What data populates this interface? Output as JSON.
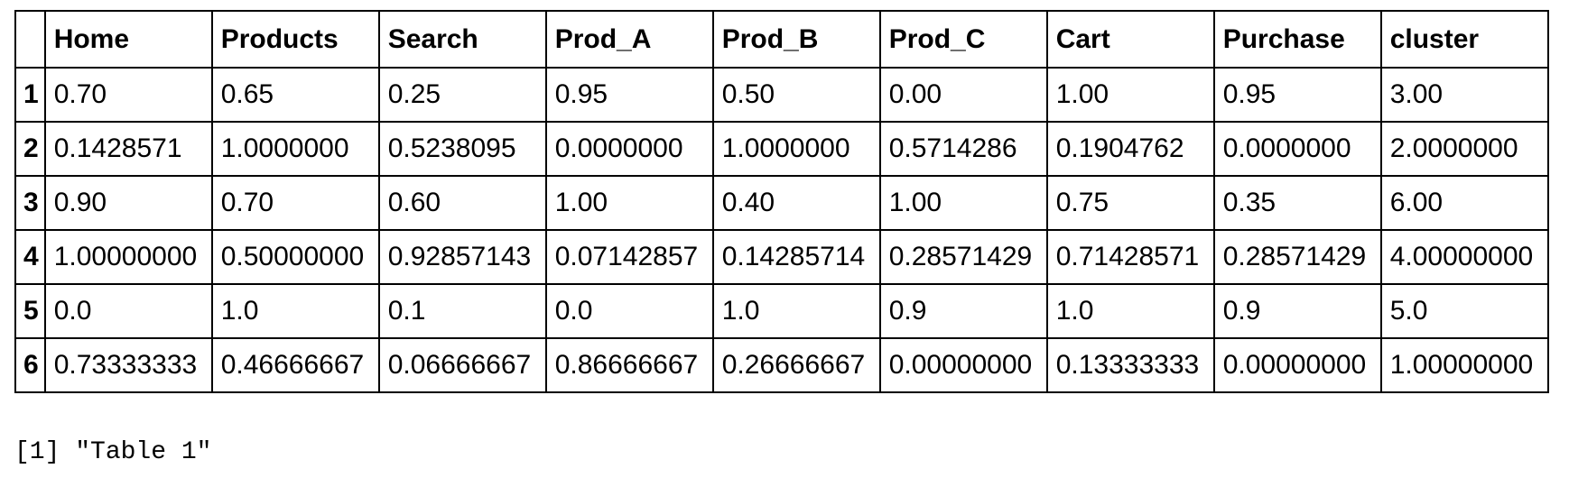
{
  "table": {
    "corner": "",
    "columns": [
      "Home",
      "Products",
      "Search",
      "Prod_A",
      "Prod_B",
      "Prod_C",
      "Cart",
      "Purchase",
      "cluster"
    ],
    "rows": [
      {
        "name": "1",
        "cells": [
          "0.70",
          "0.65",
          "0.25",
          "0.95",
          "0.50",
          "0.00",
          "1.00",
          "0.95",
          "3.00"
        ]
      },
      {
        "name": "2",
        "cells": [
          "0.1428571",
          "1.0000000",
          "0.5238095",
          "0.0000000",
          "1.0000000",
          "0.5714286",
          "0.1904762",
          "0.0000000",
          "2.0000000"
        ]
      },
      {
        "name": "3",
        "cells": [
          "0.90",
          "0.70",
          "0.60",
          "1.00",
          "0.40",
          "1.00",
          "0.75",
          "0.35",
          "6.00"
        ]
      },
      {
        "name": "4",
        "cells": [
          "1.00000000",
          "0.50000000",
          "0.92857143",
          "0.07142857",
          "0.14285714",
          "0.28571429",
          "0.71428571",
          "0.28571429",
          "4.00000000"
        ]
      },
      {
        "name": "5",
        "cells": [
          "0.0",
          "1.0",
          "0.1",
          "0.0",
          "1.0",
          "0.9",
          "1.0",
          "0.9",
          "5.0"
        ]
      },
      {
        "name": "6",
        "cells": [
          "0.73333333",
          "0.46666667",
          "0.06666667",
          "0.86666667",
          "0.26666667",
          "0.00000000",
          "0.13333333",
          "0.00000000",
          "1.00000000"
        ]
      }
    ]
  },
  "output": {
    "line": "[1] \"Table 1\""
  }
}
